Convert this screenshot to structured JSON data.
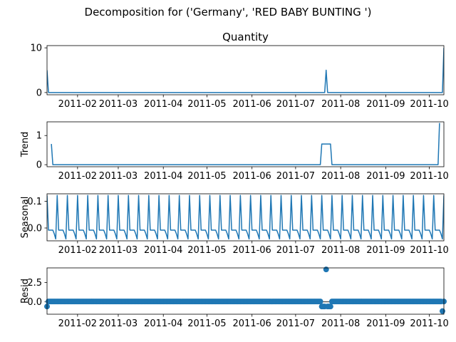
{
  "chart_data": {
    "type": "line",
    "title": "Decomposition for ('Germany', 'RED BABY BUNTING ')",
    "x_start": "2011-01-11",
    "x_end": "2011-10-11",
    "x_tick_labels": [
      "2011-02",
      "2011-03",
      "2011-04",
      "2011-05",
      "2011-06",
      "2011-07",
      "2011-08",
      "2011-09",
      "2011-10"
    ],
    "colors": {
      "line": "#1f77b4",
      "zero_line": "#000000"
    },
    "panels": [
      {
        "key": "observed",
        "title": "Quantity",
        "ylabel": "",
        "kind": "line",
        "ylim": [
          -0.5,
          10.5
        ],
        "yticks": [
          0,
          10
        ],
        "ytick_labels": [
          "0",
          "10"
        ],
        "points": [
          [
            "2011-01-11",
            5
          ],
          [
            "2011-01-12",
            0
          ],
          [
            "2011-07-21",
            0
          ],
          [
            "2011-07-22",
            5
          ],
          [
            "2011-07-23",
            0
          ],
          [
            "2011-10-10",
            0
          ],
          [
            "2011-10-11",
            10
          ]
        ]
      },
      {
        "key": "trend",
        "title": "",
        "ylabel": "Trend",
        "kind": "line",
        "ylim": [
          -0.07,
          1.47
        ],
        "yticks": [
          0,
          1
        ],
        "ytick_labels": [
          "0",
          "1"
        ],
        "points": [
          [
            "2011-01-14",
            0.71
          ],
          [
            "2011-01-15",
            0
          ],
          [
            "2011-07-18",
            0
          ],
          [
            "2011-07-19",
            0.71
          ],
          [
            "2011-07-25",
            0.71
          ],
          [
            "2011-07-26",
            0
          ],
          [
            "2011-10-07",
            0
          ],
          [
            "2011-10-08",
            1.43
          ]
        ]
      },
      {
        "key": "seasonal",
        "title": "",
        "ylabel": "Seasonal",
        "kind": "seasonal",
        "ylim": [
          -0.048,
          0.128
        ],
        "yticks": [
          0.0,
          0.1
        ],
        "ytick_labels": [
          "0.0",
          "0.1"
        ],
        "period_days": 7,
        "pattern": [
          0.122,
          -0.008,
          -0.008,
          -0.008,
          -0.008,
          -0.022,
          -0.041
        ]
      },
      {
        "key": "resid",
        "title": "",
        "ylabel": "Resid",
        "kind": "scatter",
        "ylim": [
          -1.6,
          4.4
        ],
        "yticks": [
          0.0,
          2.5
        ],
        "ytick_labels": [
          "0.0",
          "2.5"
        ],
        "baseline": 0.05,
        "special_points": [
          [
            "2011-01-11",
            -0.6
          ],
          [
            "2011-07-19",
            -0.6
          ],
          [
            "2011-07-20",
            -0.6
          ],
          [
            "2011-07-21",
            -0.6
          ],
          [
            "2011-07-22",
            4.2
          ],
          [
            "2011-07-23",
            -0.6
          ],
          [
            "2011-07-24",
            -0.6
          ],
          [
            "2011-07-25",
            -0.6
          ],
          [
            "2011-10-10",
            -1.2
          ]
        ]
      }
    ]
  }
}
